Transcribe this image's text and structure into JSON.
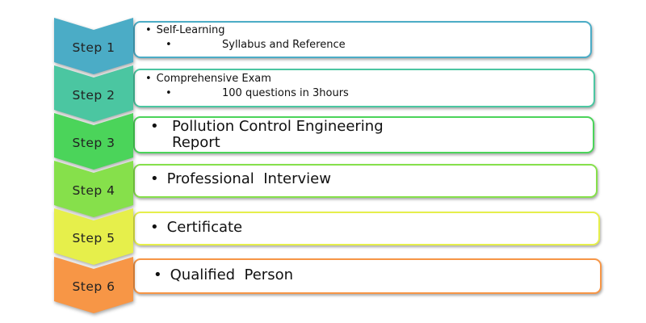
{
  "steps": [
    {
      "label": "Step 1",
      "color": "#4bacc6",
      "items": [
        {
          "text": "Self-Learning",
          "level": 1
        },
        {
          "text": "Syllabus and Reference",
          "level": 2
        }
      ]
    },
    {
      "label": "Step 2",
      "color": "#4bc6a1",
      "items": [
        {
          "text": "Comprehensive Exam",
          "level": 1
        },
        {
          "text": "100 questions in 3hours",
          "level": 2
        }
      ]
    },
    {
      "label": "Step 3",
      "color": "#4bd45a",
      "items": [
        {
          "text_lines": [
            "Pollution Control Engineering",
            "Report"
          ],
          "level": 1
        }
      ]
    },
    {
      "label": "Step 4",
      "color": "#86e04b",
      "items": [
        {
          "text": "Professional  Interview",
          "level": 1
        }
      ]
    },
    {
      "label": "Step 5",
      "color": "#e6ef4b",
      "items": [
        {
          "text": "Certificate",
          "level": 1
        }
      ]
    },
    {
      "label": "Step 6",
      "color": "#f79646",
      "items": [
        {
          "text": "Qualified  Person",
          "level": 1
        }
      ]
    }
  ],
  "bullet_glyph": "•"
}
